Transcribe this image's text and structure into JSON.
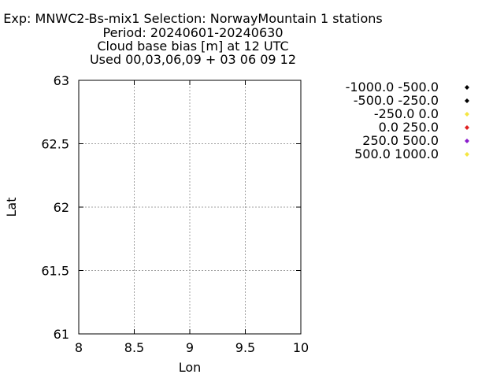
{
  "chart_data": {
    "type": "scatter",
    "title_lines": [
      "Exp: MNWC2-Bs-mix1   Selection: NorwayMountain      1 stations",
      "Period: 20240601-20240630",
      "Cloud base bias [m] at  12 UTC",
      "Used 00,03,06,09 + 03 06 09 12"
    ],
    "xlabel": "Lon",
    "ylabel": "Lat",
    "xlim": [
      8,
      10
    ],
    "ylim": [
      61,
      63
    ],
    "xticks": [
      8,
      8.5,
      9,
      9.5,
      10
    ],
    "xtick_labels": [
      "8",
      "8.5",
      "9",
      "9.5",
      "10"
    ],
    "yticks": [
      61,
      61.5,
      62,
      62.5,
      63
    ],
    "ytick_labels": [
      "61",
      "61.5",
      "62",
      "62.5",
      "63"
    ],
    "grid": true,
    "legend_position": "right",
    "legend": [
      {
        "label": "-1000.0 -500.0",
        "color": "#000000"
      },
      {
        "label": "-500.0 -250.0",
        "color": "#000000"
      },
      {
        "label": "-250.0 0.0",
        "color": "#f5e642"
      },
      {
        "label": "0.0 250.0",
        "color": "#e02020"
      },
      {
        "label": "250.0 500.0",
        "color": "#8a1ccc"
      },
      {
        "label": "500.0 1000.0",
        "color": "#f5e642"
      }
    ],
    "points": []
  }
}
